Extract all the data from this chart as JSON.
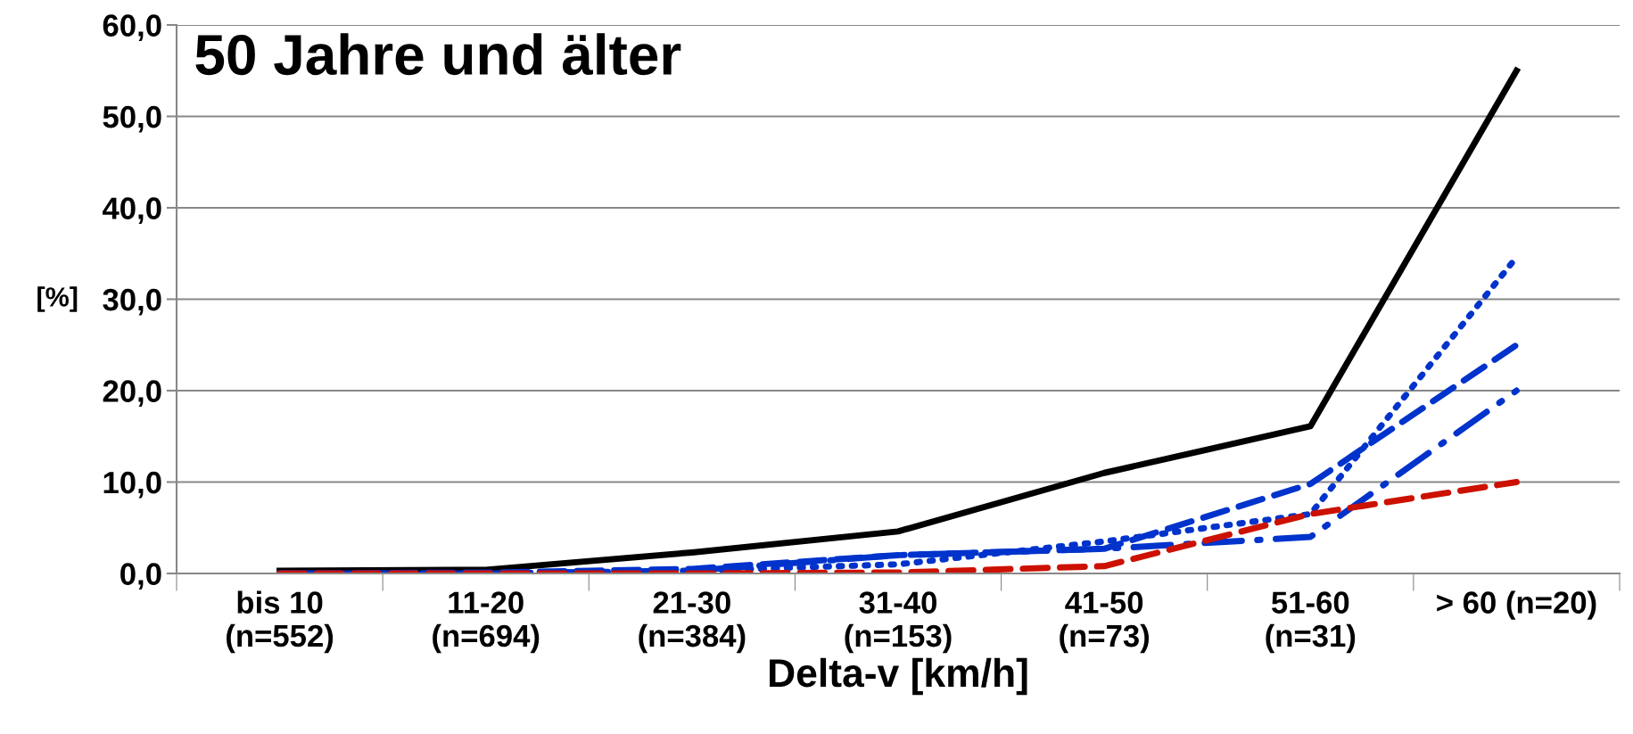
{
  "chart_data": {
    "type": "line",
    "title": "50 Jahre und älter",
    "xlabel": "Delta-v [km/h]",
    "ylabel": "[%]",
    "categories": [
      "bis 10\n(n=552)",
      "11-20\n(n=694)",
      "21-30\n(n=384)",
      "31-40\n(n=153)",
      "41-50\n(n=73)",
      "51-60\n(n=31)",
      "> 60 (n=20)"
    ],
    "series": [
      {
        "color": "#000000",
        "line_style": "solid",
        "values": [
          0.3,
          0.4,
          2.3,
          4.6,
          11.0,
          16.1,
          55.0
        ]
      },
      {
        "color": "#0033cc",
        "line_style": "dotted",
        "values": [
          0.0,
          0.0,
          0.3,
          1.0,
          3.5,
          6.5,
          34.6
        ]
      },
      {
        "color": "#0033cc",
        "line_style": "dashed",
        "values": [
          0.0,
          0.1,
          0.5,
          2.0,
          2.7,
          9.8,
          25.0
        ]
      },
      {
        "color": "#0033cc",
        "line_style": "dashdot",
        "values": [
          0.0,
          0.0,
          0.3,
          2.0,
          2.7,
          4.0,
          20.0
        ]
      },
      {
        "color": "#cc1100",
        "line_style": "dashed",
        "values": [
          0.0,
          0.0,
          0.0,
          0.1,
          0.8,
          6.5,
          10.0
        ]
      }
    ],
    "ylim": [
      0,
      60
    ],
    "yticks": [
      {
        "value": 0,
        "label": "0,0"
      },
      {
        "value": 10,
        "label": "10,0"
      },
      {
        "value": 20,
        "label": "20,0"
      },
      {
        "value": 30,
        "label": "30,0"
      },
      {
        "value": 40,
        "label": "40,0"
      },
      {
        "value": 50,
        "label": "50,0"
      },
      {
        "value": 60,
        "label": "60,0"
      }
    ],
    "grid": "y",
    "marker": "none"
  }
}
